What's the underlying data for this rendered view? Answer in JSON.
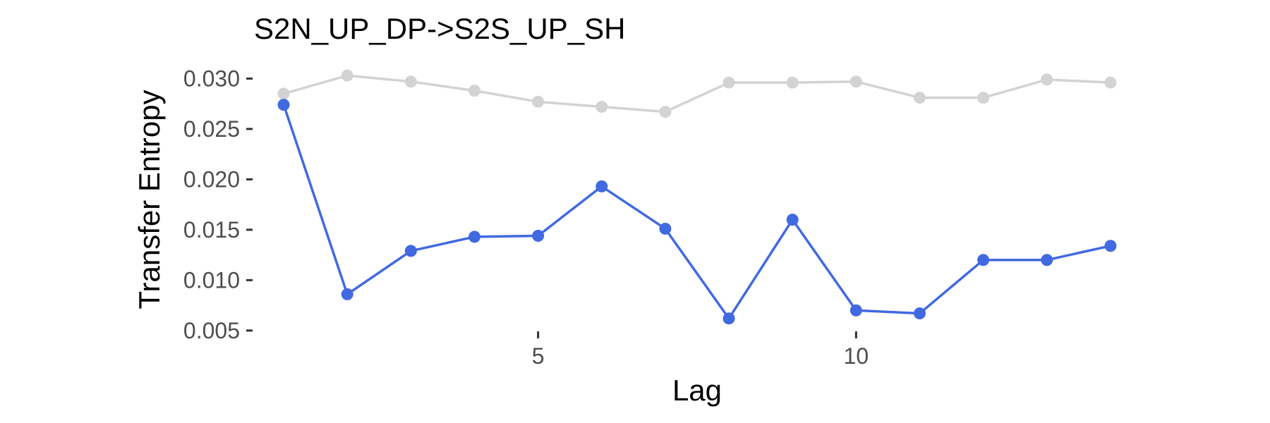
{
  "chart_data": {
    "type": "line",
    "title": "S2N_UP_DP->S2S_UP_SH",
    "xlabel": "Lag",
    "ylabel": "Transfer Entropy",
    "xlim": [
      0.6,
      14.4
    ],
    "ylim": [
      0.0045,
      0.0315
    ],
    "x_ticks": [
      5,
      10
    ],
    "x_tick_labels": [
      "5",
      "10"
    ],
    "y_ticks": [
      0.005,
      0.01,
      0.015,
      0.02,
      0.025,
      0.03
    ],
    "y_tick_labels": [
      "0.005",
      "0.010",
      "0.015",
      "0.020",
      "0.025",
      "0.030"
    ],
    "grid": false,
    "legend": "none",
    "x": [
      1,
      2,
      3,
      4,
      5,
      6,
      7,
      8,
      9,
      10,
      11,
      12,
      13,
      14
    ],
    "series": [
      {
        "color": "#d3d3d3",
        "values": [
          0.0285,
          0.0303,
          0.0297,
          0.0288,
          0.0277,
          0.0272,
          0.0267,
          0.0296,
          0.0296,
          0.0297,
          0.0281,
          0.0281,
          0.0299,
          0.0296
        ]
      },
      {
        "color": "#4169e1",
        "values": [
          0.0274,
          0.0086,
          0.0129,
          0.0143,
          0.0144,
          0.0193,
          0.0151,
          0.0062,
          0.016,
          0.007,
          0.0067,
          0.012,
          0.012,
          0.0134
        ]
      }
    ]
  }
}
